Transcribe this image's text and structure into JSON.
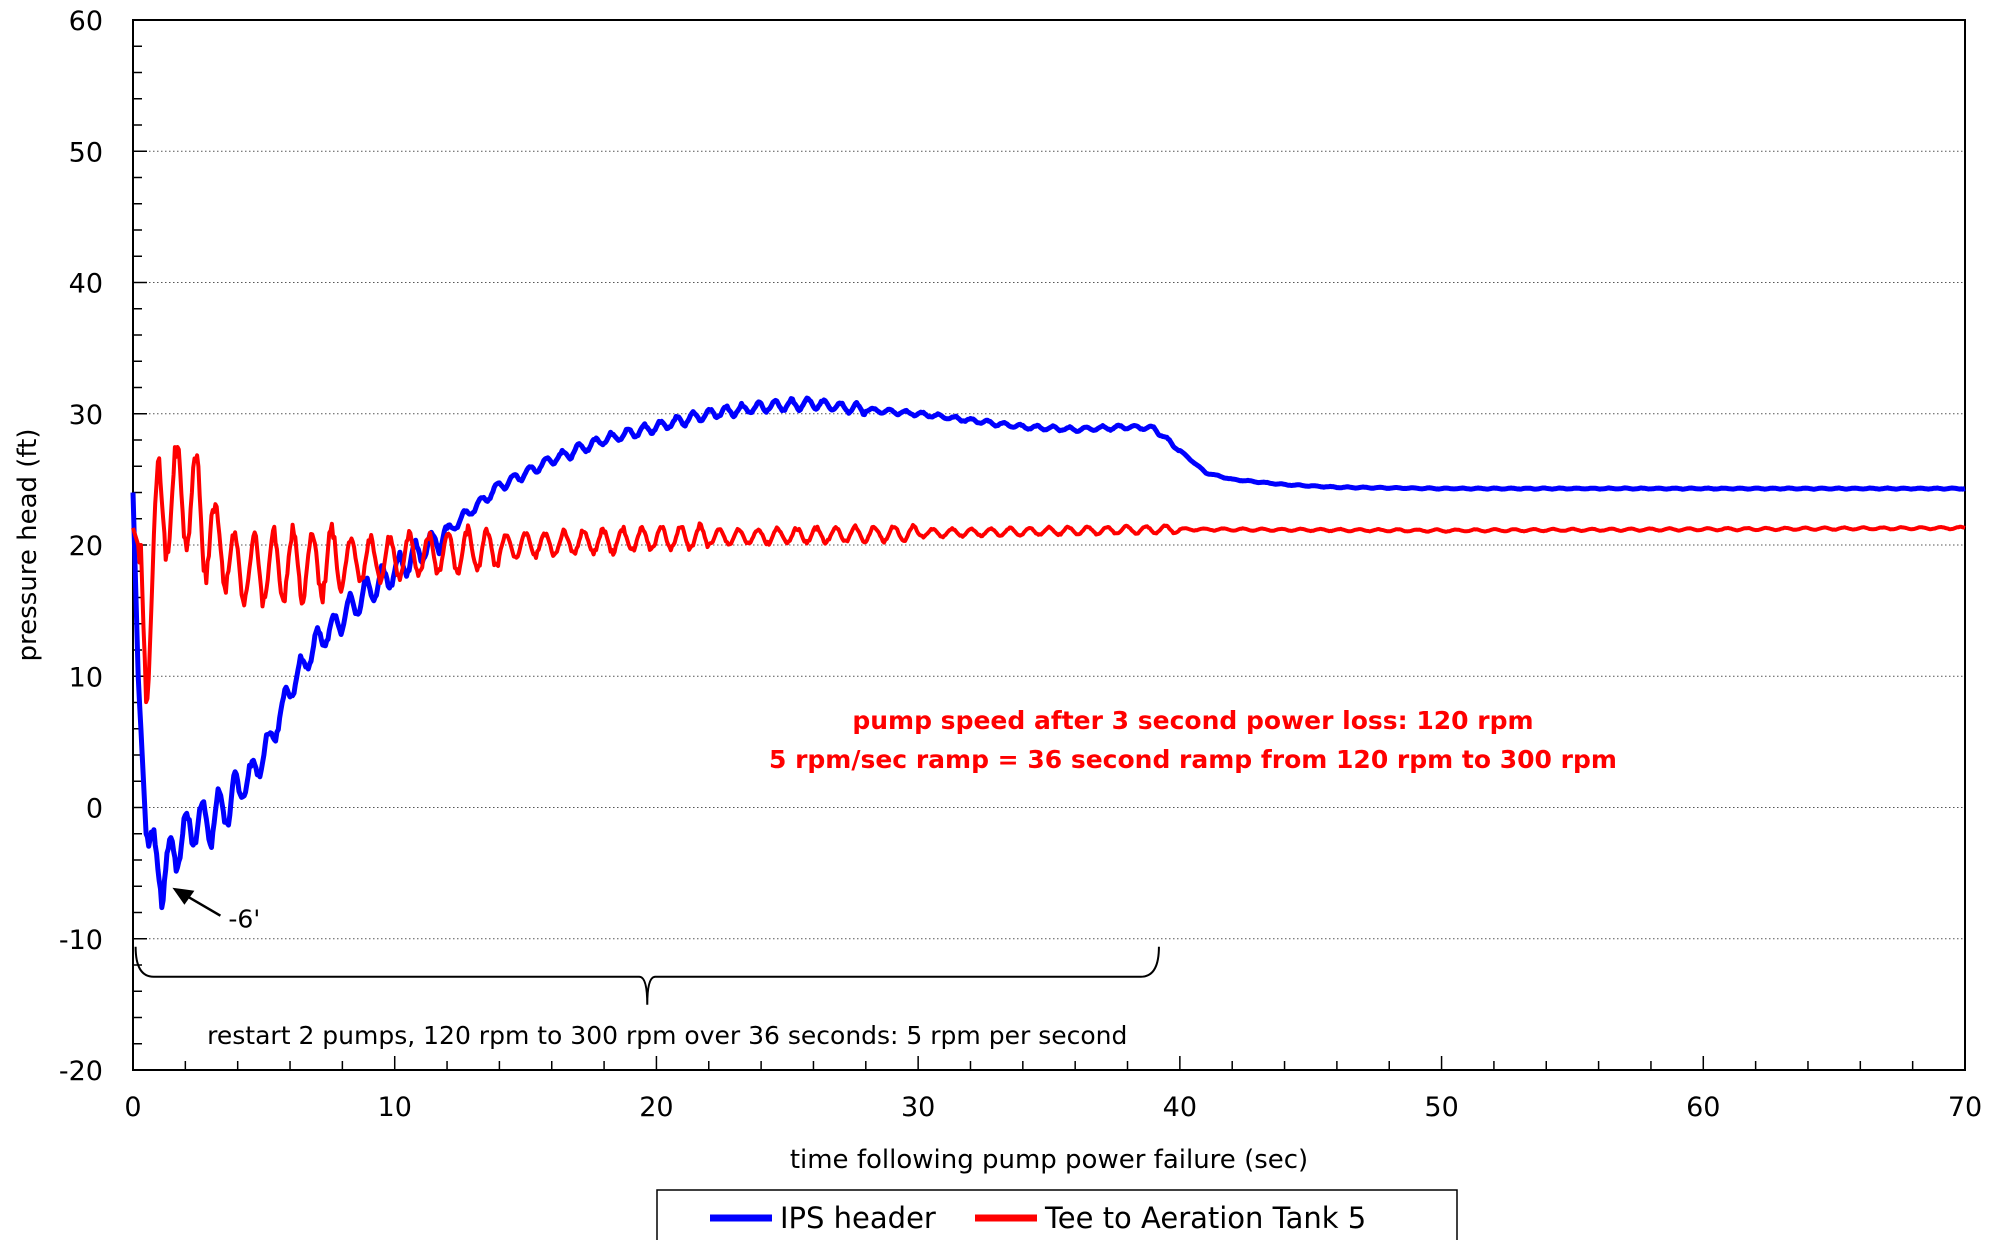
{
  "chart_data": {
    "type": "line",
    "title": "",
    "xlabel": "time following pump power failure (sec)",
    "ylabel": "pressure head (ft)",
    "xlim": [
      0,
      70
    ],
    "ylim": [
      -20,
      60
    ],
    "x_ticks": [
      0,
      10,
      20,
      30,
      40,
      50,
      60,
      70
    ],
    "y_ticks": [
      -20,
      -10,
      0,
      10,
      20,
      30,
      40,
      50,
      60
    ],
    "grid": "horizontal dotted gridlines",
    "legend_position": "bottom-center",
    "series": [
      {
        "name": "IPS header",
        "color": "#0000ff",
        "x": [
          0,
          0.2,
          0.5,
          0.8,
          1.1,
          1.4,
          2,
          2.5,
          3,
          3.5,
          4,
          5,
          6,
          7,
          8,
          9,
          10,
          11,
          12,
          14,
          16,
          18,
          20,
          22,
          24,
          26,
          27,
          28,
          30,
          32,
          34,
          36,
          38,
          39,
          40,
          41,
          42,
          44,
          46,
          50,
          60,
          70
        ],
        "y": [
          24,
          10,
          -2,
          -3.5,
          -5.5,
          -4,
          -2,
          -1,
          -1,
          0,
          1,
          4,
          9,
          12.5,
          14.5,
          16.5,
          18,
          19.5,
          21,
          24.5,
          26.5,
          28,
          29,
          30,
          30.5,
          30.8,
          30.5,
          30.3,
          30,
          29.5,
          29,
          28.8,
          29,
          28.9,
          27.2,
          25.5,
          25,
          24.6,
          24.4,
          24.3,
          24.3,
          24.3
        ]
      },
      {
        "name": "Tee to Aeration Tank 5",
        "color": "#ff0000",
        "x": [
          0,
          0.2,
          0.5,
          1,
          2,
          4,
          6,
          10,
          15,
          20,
          30,
          40,
          50,
          60,
          70
        ],
        "y": [
          21.3,
          20,
          12,
          23,
          24,
          18,
          18.5,
          19,
          20,
          20.5,
          20.9,
          21.2,
          21.1,
          21.2,
          21.3
        ]
      }
    ],
    "annotations": [
      {
        "text": "pump speed after 3 second power loss: 120 rpm"
      },
      {
        "text": "5 rpm/sec ramp = 36 second ramp from 120 rpm to 300 rpm"
      },
      {
        "text": "-6'",
        "at_x": 1.2,
        "at_y": -5.5
      },
      {
        "text": "restart 2 pumps, 120 rpm to 300 rpm over 36 seconds: 5 rpm per second",
        "brace_x": [
          0.1,
          39.2
        ]
      }
    ]
  }
}
